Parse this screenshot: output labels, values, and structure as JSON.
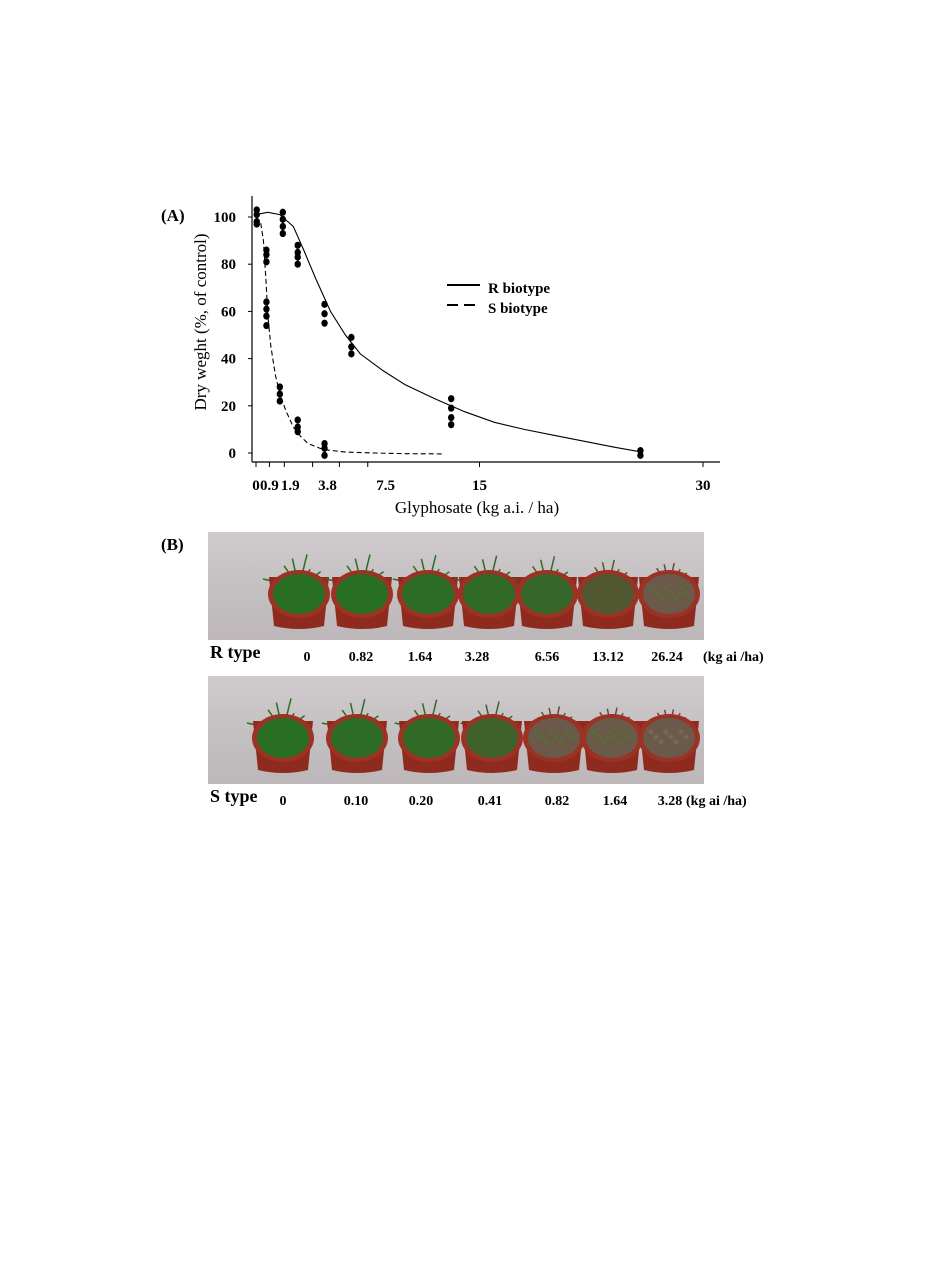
{
  "panel_a_label": "(A)",
  "panel_b_label": "(B)",
  "chart_data": {
    "type": "scatter",
    "xlabel": "Glyphosate (kg a.i. / ha)",
    "ylabel": "Dry weght (%, of control)",
    "xlim": [
      0,
      31
    ],
    "ylim": [
      0,
      105
    ],
    "x_ticks": [
      {
        "v": 0,
        "label": "0"
      },
      {
        "v": 0.9,
        "label": ""
      },
      {
        "v": 1.9,
        "label": ""
      },
      {
        "v": 3.8,
        "label": ""
      },
      {
        "v": 5.6,
        "label": ""
      },
      {
        "v": 7.5,
        "label": ""
      },
      {
        "v": 15,
        "label": "15"
      },
      {
        "v": 30,
        "label": "30"
      }
    ],
    "x_tick_labels_extra": [
      "0.9",
      "1.9",
      "3.8",
      "7.5"
    ],
    "y_ticks": [
      0,
      20,
      40,
      60,
      80,
      100
    ],
    "legend": {
      "position": "top-right",
      "entries": [
        "R biotype",
        "S biotype"
      ]
    },
    "series": [
      {
        "name": "R biotype",
        "line_style": "solid",
        "points": [
          [
            0.05,
            101
          ],
          [
            0.05,
            97
          ],
          [
            1.8,
            102
          ],
          [
            1.8,
            99
          ],
          [
            1.8,
            96
          ],
          [
            1.8,
            93
          ],
          [
            2.8,
            88
          ],
          [
            2.8,
            85
          ],
          [
            2.8,
            83
          ],
          [
            2.8,
            80
          ],
          [
            4.6,
            63
          ],
          [
            4.6,
            59
          ],
          [
            4.6,
            55
          ],
          [
            6.4,
            49
          ],
          [
            6.4,
            45
          ],
          [
            6.4,
            42
          ],
          [
            13.1,
            23
          ],
          [
            13.1,
            19
          ],
          [
            13.1,
            15
          ],
          [
            13.1,
            12
          ],
          [
            25.8,
            1
          ],
          [
            25.8,
            -1
          ]
        ],
        "curve": [
          [
            0,
            101
          ],
          [
            0.8,
            102
          ],
          [
            1.6,
            101
          ],
          [
            2.5,
            96
          ],
          [
            3.2,
            86
          ],
          [
            4.0,
            74
          ],
          [
            5.0,
            60
          ],
          [
            6.0,
            50
          ],
          [
            7.0,
            42
          ],
          [
            8.5,
            35
          ],
          [
            10,
            29
          ],
          [
            12,
            23
          ],
          [
            14,
            17.5
          ],
          [
            16,
            13
          ],
          [
            18,
            10
          ],
          [
            20,
            7.5
          ],
          [
            22,
            5
          ],
          [
            24,
            2.5
          ],
          [
            25.8,
            0.5
          ]
        ]
      },
      {
        "name": "S biotype",
        "line_style": "dashed",
        "points": [
          [
            0.05,
            103
          ],
          [
            0.05,
            98
          ],
          [
            0.7,
            86
          ],
          [
            0.7,
            84
          ],
          [
            0.7,
            81
          ],
          [
            0.7,
            64
          ],
          [
            0.7,
            61
          ],
          [
            0.7,
            58
          ],
          [
            0.7,
            54
          ],
          [
            1.6,
            28
          ],
          [
            1.6,
            25
          ],
          [
            1.6,
            22
          ],
          [
            2.8,
            14
          ],
          [
            2.8,
            11
          ],
          [
            2.8,
            9
          ],
          [
            4.6,
            4
          ],
          [
            4.6,
            2
          ],
          [
            4.6,
            -1
          ]
        ],
        "curve": [
          [
            0,
            100
          ],
          [
            0.3,
            98
          ],
          [
            0.5,
            90
          ],
          [
            0.65,
            75
          ],
          [
            0.8,
            58
          ],
          [
            1.0,
            45
          ],
          [
            1.3,
            33
          ],
          [
            1.6,
            25
          ],
          [
            2.0,
            18
          ],
          [
            2.5,
            11
          ],
          [
            3.0,
            7
          ],
          [
            3.5,
            4
          ],
          [
            4.5,
            1.5
          ],
          [
            6,
            0.4
          ],
          [
            8,
            0
          ],
          [
            10,
            -0.3
          ],
          [
            12.5,
            -0.4
          ]
        ]
      }
    ]
  },
  "photos": {
    "r_row": {
      "label": "R type",
      "doses": [
        "0",
        "0.82",
        "1.64",
        "3.28",
        "6.56",
        "13.12",
        "26.24"
      ],
      "unit": "(kg ai /ha)"
    },
    "s_row": {
      "label": "S type",
      "doses": [
        "0",
        "0.10",
        "0.20",
        "0.41",
        "0.82",
        "1.64",
        "3.28"
      ],
      "unit": "(kg ai /ha)"
    }
  }
}
